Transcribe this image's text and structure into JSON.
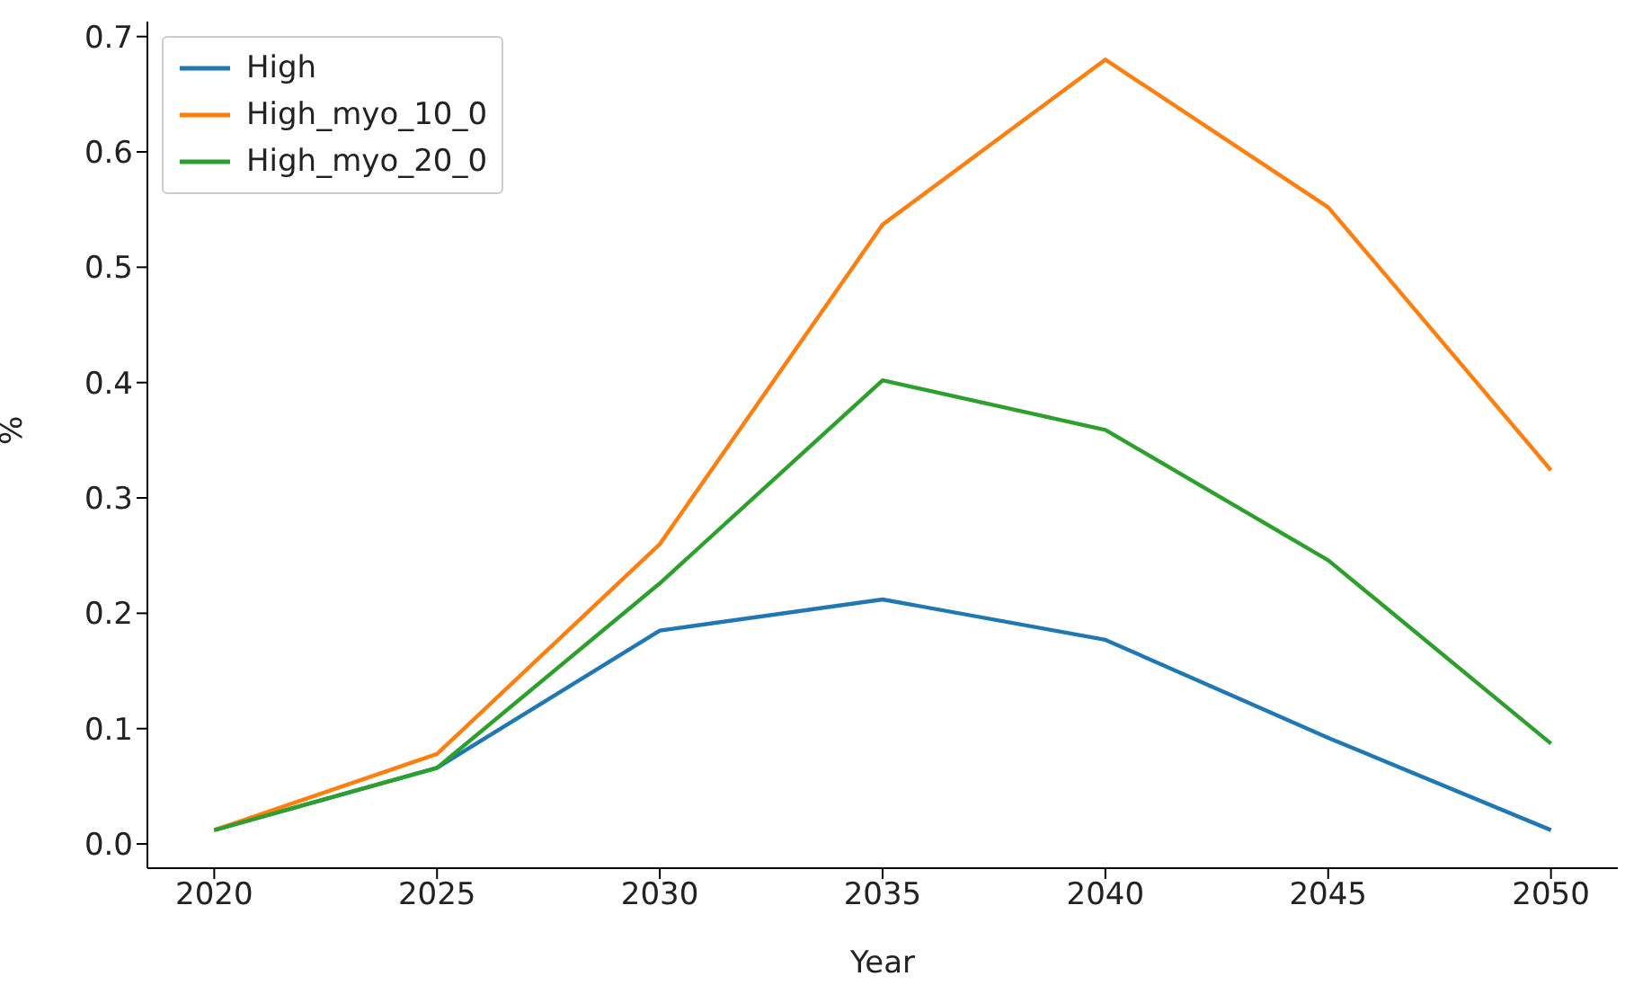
{
  "chart_data": {
    "type": "line",
    "xlabel": "Year",
    "ylabel": "%",
    "x": [
      2020,
      2025,
      2030,
      2035,
      2040,
      2045,
      2050
    ],
    "series": [
      {
        "name": "High",
        "color": "#1f77b4",
        "values": [
          0.012,
          0.066,
          0.185,
          0.212,
          0.177,
          0.092,
          0.012
        ]
      },
      {
        "name": "High_myo_10_0",
        "color": "#ff7f0e",
        "values": [
          0.012,
          0.078,
          0.26,
          0.537,
          0.68,
          0.552,
          0.324
        ]
      },
      {
        "name": "High_myo_20_0",
        "color": "#2ca02c",
        "values": [
          0.012,
          0.066,
          0.226,
          0.402,
          0.359,
          0.246,
          0.087
        ]
      }
    ],
    "xlim": [
      2018.5,
      2051.5
    ],
    "xticks": [
      2020,
      2025,
      2030,
      2035,
      2040,
      2045,
      2050
    ],
    "ylim": [
      -0.021,
      0.713
    ],
    "yticks": [
      {
        "value": 0,
        "label": "0.0"
      },
      {
        "value": 0.1,
        "label": "0.1"
      },
      {
        "value": 0.2,
        "label": "0.2"
      },
      {
        "value": 0.3,
        "label": "0.3"
      },
      {
        "value": 0.4,
        "label": "0.4"
      },
      {
        "value": 0.5,
        "label": "0.5"
      },
      {
        "value": 0.6,
        "label": "0.6"
      },
      {
        "value": 0.7,
        "label": "0.7"
      }
    ],
    "grid": false,
    "legend": "top left",
    "marker": "none",
    "line_style": "solid"
  }
}
